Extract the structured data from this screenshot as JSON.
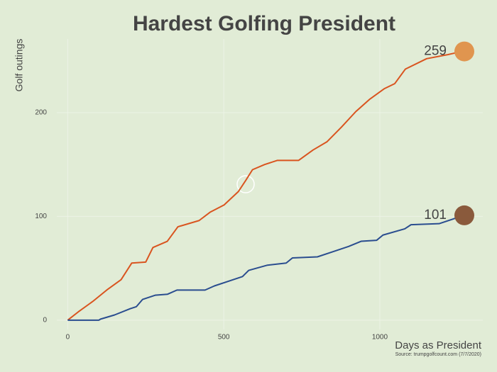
{
  "chart_data": {
    "type": "line",
    "title": "Hardest Golfing President",
    "x_label": "Days as President",
    "y_label": "Golf outings",
    "source": "Source: trumpgolfcount.com (7/7/2020)",
    "xlim": [
      -35,
      1330
    ],
    "ylim": [
      -9,
      271
    ],
    "xticks": [
      0,
      500,
      1000
    ],
    "yticks": [
      0,
      100,
      200
    ],
    "grid": true,
    "series": [
      {
        "color": "#d9541f",
        "x": [
          0,
          34,
          80,
          125,
          171,
          205,
          250,
          273,
          319,
          353,
          421,
          456,
          501,
          547,
          569,
          592,
          631,
          672,
          740,
          786,
          831,
          877,
          923,
          968,
          1014,
          1048,
          1082,
          1150,
          1219,
          1264
        ],
        "values": [
          0,
          8,
          18,
          29,
          39,
          55,
          56,
          70,
          76,
          90,
          96,
          104,
          111,
          124,
          134,
          145,
          150,
          154,
          154,
          164,
          172,
          186,
          201,
          213,
          223,
          228,
          242,
          252,
          256,
          259
        ]
      },
      {
        "color": "#2a4d8f",
        "x": [
          0,
          100,
          105,
          150,
          200,
          220,
          240,
          280,
          320,
          350,
          440,
          470,
          520,
          560,
          580,
          640,
          700,
          720,
          800,
          850,
          900,
          940,
          990,
          1010,
          1080,
          1100,
          1190,
          1240,
          1264
        ],
        "values": [
          0,
          0,
          1,
          5,
          11,
          13,
          20,
          24,
          25,
          29,
          29,
          33,
          38,
          42,
          48,
          53,
          55,
          60,
          61,
          66,
          71,
          76,
          77,
          82,
          88,
          92,
          93,
          98,
          101
        ]
      }
    ]
  }
}
